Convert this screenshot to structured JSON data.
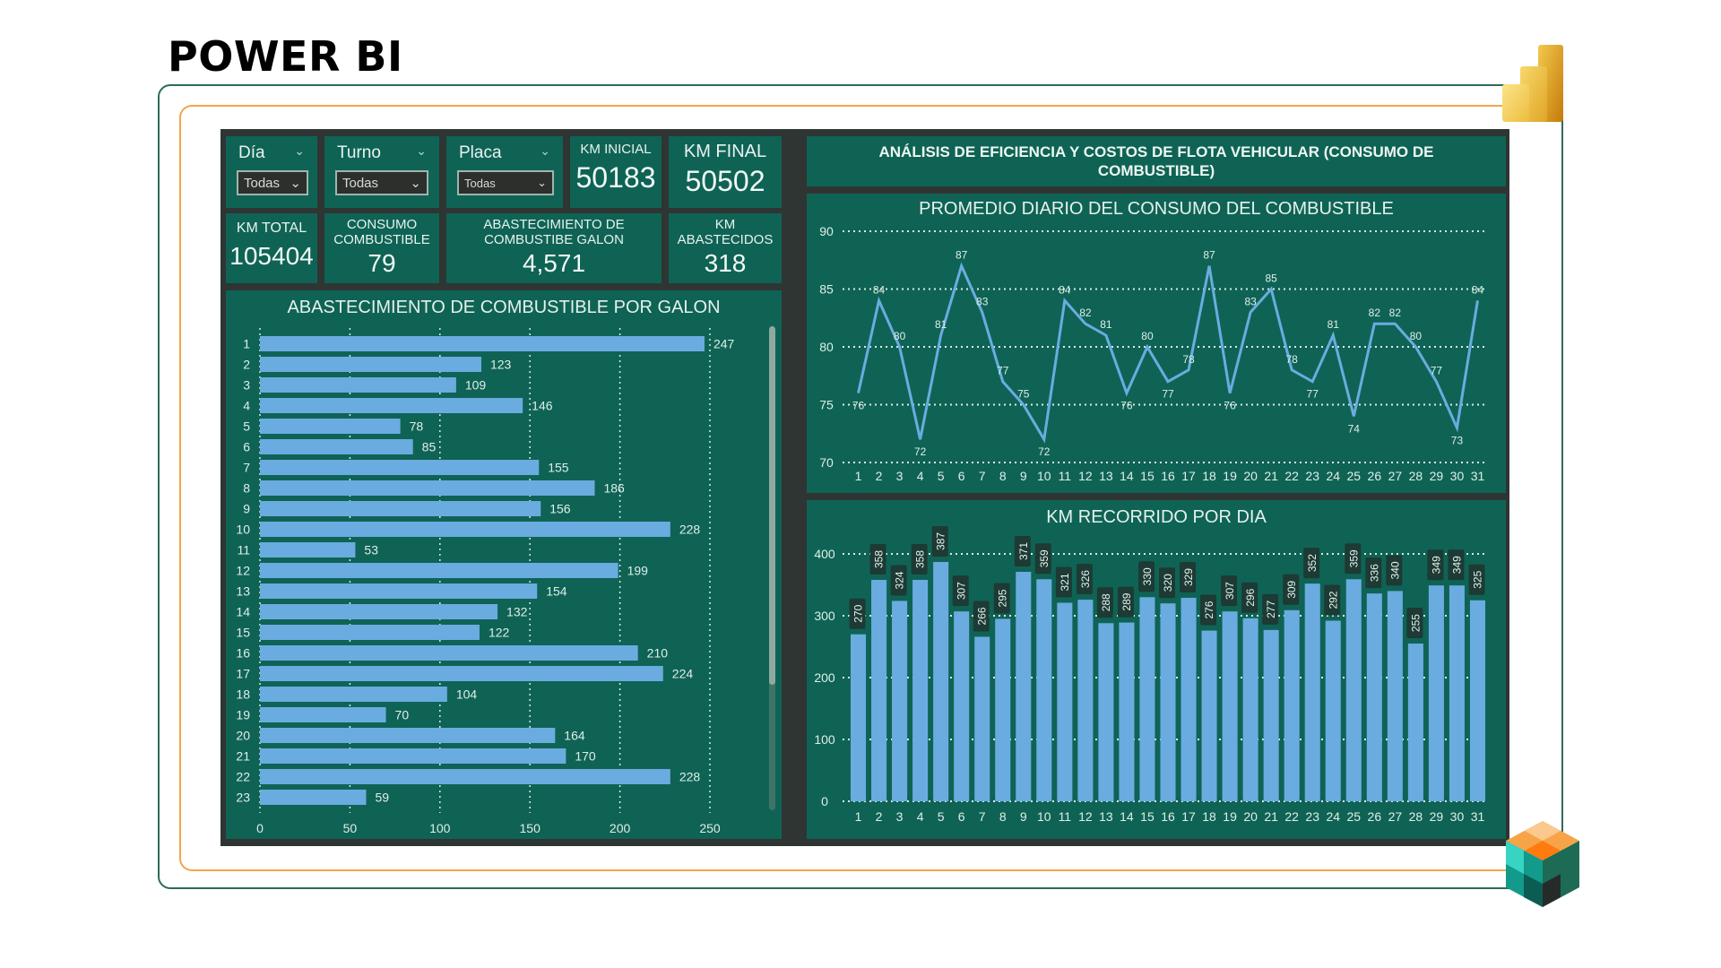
{
  "slide": {
    "title": "POWER BI"
  },
  "colors": {
    "tile_bg": "#0f6355",
    "frame_bg": "#2f3532",
    "bar": "#6aace0",
    "line": "#6aace0",
    "text": "#e8f3ee",
    "outer_border": "#2d6b5c",
    "inner_border": "#f0a64a"
  },
  "slicers": [
    {
      "label": "Día",
      "value": "Todas"
    },
    {
      "label": "Turno",
      "value": "Todas"
    },
    {
      "label": "Placa",
      "value": "Todas"
    }
  ],
  "kpis": {
    "km_inicial": {
      "title": "KM INICIAL",
      "value": "50183"
    },
    "km_final": {
      "title": "KM FINAL",
      "value": "50502"
    },
    "km_total": {
      "title": "KM TOTAL",
      "value": "105404"
    },
    "consumo": {
      "title_line1": "CONSUMO",
      "title_line2": "COMBUSTIBLE",
      "value": "79"
    },
    "abastecimiento": {
      "title_line1": "ABASTECIMIENTO DE",
      "title_line2": "COMBUSTIBE GALON",
      "value": "4,571"
    },
    "km_abastecidos": {
      "title_line1": "KM",
      "title_line2": "ABASTECIDOS",
      "value": "318"
    }
  },
  "main_title": {
    "line1": "ANÁLISIS DE EFICIENCIA Y COSTOS DE FLOTA VEHICULAR (CONSUMO DE",
    "line2": "COMBUSTIBLE)"
  },
  "chart_data": [
    {
      "id": "abastecimiento_por_galon",
      "type": "bar",
      "orientation": "horizontal",
      "title": "ABASTECIMIENTO DE COMBUSTIBLE POR GALON",
      "categories": [
        "1",
        "2",
        "3",
        "4",
        "5",
        "6",
        "7",
        "8",
        "9",
        "10",
        "11",
        "12",
        "13",
        "14",
        "15",
        "16",
        "17",
        "18",
        "19",
        "20",
        "21",
        "22",
        "23"
      ],
      "values": [
        247,
        123,
        109,
        146,
        78,
        85,
        155,
        186,
        156,
        228,
        53,
        199,
        154,
        132,
        122,
        210,
        224,
        104,
        70,
        164,
        170,
        228,
        59
      ],
      "xlabel": "",
      "ylabel": "",
      "xlim": [
        0,
        250
      ],
      "xticks": [
        0,
        50,
        100,
        150,
        200,
        250
      ],
      "grid": true,
      "data_labels": true
    },
    {
      "id": "promedio_diario_consumo",
      "type": "line",
      "title": "PROMEDIO DIARIO DEL CONSUMO DEL COMBUSTIBLE",
      "x": [
        1,
        2,
        3,
        4,
        5,
        6,
        7,
        8,
        9,
        10,
        11,
        12,
        13,
        14,
        15,
        16,
        17,
        18,
        19,
        20,
        21,
        22,
        23,
        24,
        25,
        26,
        27,
        28,
        29,
        30,
        31
      ],
      "values": [
        76,
        84,
        80,
        72,
        81,
        87,
        83,
        77,
        75,
        72,
        84,
        82,
        81,
        76,
        80,
        77,
        78,
        87,
        76,
        83,
        85,
        78,
        77,
        81,
        74,
        82,
        82,
        80,
        77,
        73,
        84
      ],
      "ylim": [
        70,
        90
      ],
      "yticks": [
        70,
        75,
        80,
        85,
        90
      ],
      "grid": true,
      "data_labels": true
    },
    {
      "id": "km_recorrido_por_dia",
      "type": "bar",
      "orientation": "vertical",
      "title": "KM RECORRIDO POR DIA",
      "categories": [
        "1",
        "2",
        "3",
        "4",
        "5",
        "6",
        "7",
        "8",
        "9",
        "10",
        "11",
        "12",
        "13",
        "14",
        "15",
        "16",
        "17",
        "18",
        "19",
        "20",
        "21",
        "22",
        "23",
        "24",
        "25",
        "26",
        "27",
        "28",
        "29",
        "30",
        "31"
      ],
      "values": [
        270,
        358,
        324,
        358,
        387,
        307,
        266,
        295,
        371,
        359,
        321,
        326,
        288,
        289,
        330,
        320,
        329,
        276,
        307,
        296,
        277,
        309,
        352,
        292,
        359,
        336,
        340,
        255,
        349,
        349,
        325
      ],
      "ylim": [
        0,
        400
      ],
      "yticks": [
        0,
        100,
        200,
        300,
        400
      ],
      "grid": true,
      "data_labels": true
    }
  ]
}
